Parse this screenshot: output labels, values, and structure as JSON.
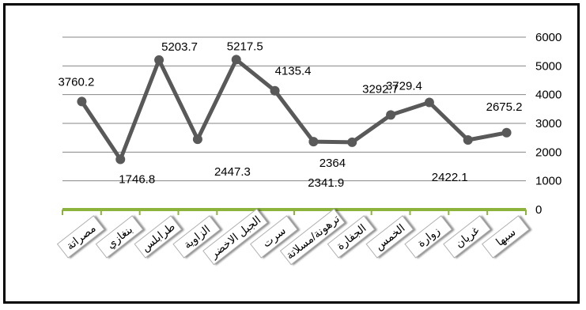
{
  "chart_data": {
    "type": "line",
    "title": "",
    "xlabel": "",
    "ylabel": "",
    "categories": [
      "سبها",
      "غريان",
      "زوارة",
      "الخمس",
      "الجفارة",
      "ترهونة/مسلاتة",
      "سرت",
      "الجبل الاخضر",
      "الزاوية",
      "طرابلس",
      "بنغازي",
      "مصراتة"
    ],
    "series": [
      {
        "values": [
          2675.2,
          2422.1,
          3729.4,
          3292.7,
          2341.9,
          2364,
          4135.4,
          5217.5,
          2447.3,
          5203.7,
          1746.8,
          3760.2
        ],
        "color": "#595959"
      }
    ],
    "data_labels": [
      "2675.2",
      "2422.1",
      "3729.4",
      "3292.7",
      "2341.9",
      "2364",
      "4135.4",
      "5217.5",
      "2447.3",
      "5203.7",
      "1746.8",
      "3760.2"
    ],
    "ylim": [
      0,
      6000
    ],
    "yticks": [
      0,
      1000,
      2000,
      3000,
      4000,
      5000,
      6000
    ],
    "ytick_labels": [
      "0",
      "1000",
      "2000",
      "3000",
      "4000",
      "5000",
      "6000"
    ],
    "y_axis_side": "right",
    "x_axis_reversed": true,
    "grid": true,
    "legend": "none",
    "colors": {
      "line": "#595959",
      "grid": "#868686",
      "x_axis": "#8DB33D",
      "frame": "#000000"
    }
  }
}
